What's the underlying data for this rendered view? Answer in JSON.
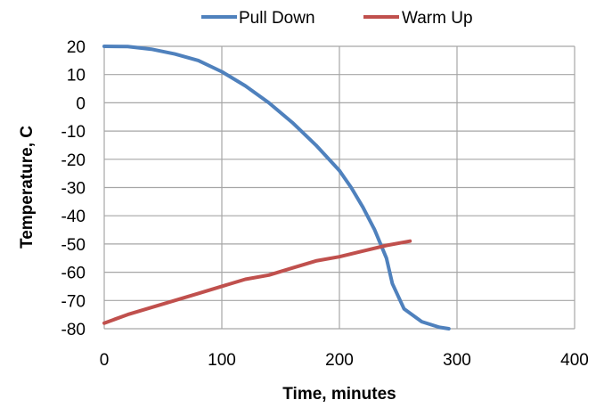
{
  "chart_data": {
    "type": "line",
    "title": "",
    "xlabel": "Time, minutes",
    "ylabel": "Temperature, C",
    "xlim": [
      0,
      400
    ],
    "ylim": [
      -80,
      20
    ],
    "xticks": [
      "0",
      "100",
      "200",
      "300",
      "400"
    ],
    "yticks": [
      "20",
      "10",
      "0",
      "-10",
      "-20",
      "-30",
      "-40",
      "-50",
      "-60",
      "-70",
      "-80"
    ],
    "grid": true,
    "legend_position": "top",
    "series": [
      {
        "name": "Pull Down",
        "color": "#4f81bd",
        "points": [
          [
            0,
            20
          ],
          [
            20,
            19.9
          ],
          [
            40,
            19
          ],
          [
            60,
            17.3
          ],
          [
            80,
            15
          ],
          [
            100,
            11
          ],
          [
            120,
            6
          ],
          [
            140,
            0
          ],
          [
            160,
            -7
          ],
          [
            180,
            -15
          ],
          [
            200,
            -24
          ],
          [
            210,
            -30
          ],
          [
            220,
            -37
          ],
          [
            230,
            -45
          ],
          [
            240,
            -55
          ],
          [
            245,
            -64
          ],
          [
            255,
            -73
          ],
          [
            270,
            -77.5
          ],
          [
            285,
            -79.5
          ],
          [
            293,
            -80
          ]
        ]
      },
      {
        "name": "Warm Up",
        "color": "#c0504d",
        "points": [
          [
            0,
            -78
          ],
          [
            20,
            -75
          ],
          [
            40,
            -72.5
          ],
          [
            60,
            -70
          ],
          [
            80,
            -67.5
          ],
          [
            100,
            -65
          ],
          [
            120,
            -62.5
          ],
          [
            140,
            -61
          ],
          [
            160,
            -58.5
          ],
          [
            180,
            -56
          ],
          [
            200,
            -54.5
          ],
          [
            220,
            -52.5
          ],
          [
            240,
            -50.5
          ],
          [
            260,
            -49
          ]
        ]
      }
    ]
  }
}
